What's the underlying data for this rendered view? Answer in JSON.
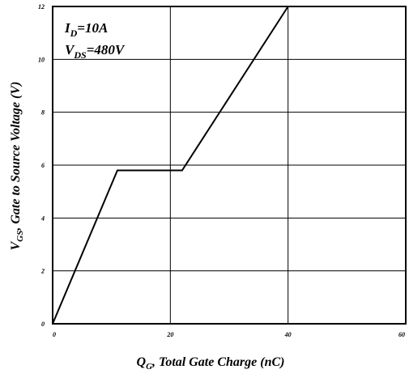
{
  "chart_data": {
    "type": "line",
    "xlim": [
      0,
      60
    ],
    "ylim": [
      0,
      12
    ],
    "x_ticks": [
      "0",
      "20",
      "40",
      "60"
    ],
    "y_ticks": [
      "0",
      "2",
      "4",
      "6",
      "8",
      "10",
      "12"
    ],
    "grid": true,
    "series": [
      {
        "x": [
          0,
          11,
          22,
          40
        ],
        "y": [
          0,
          5.8,
          5.8,
          12
        ]
      }
    ],
    "xlabel": {
      "symbol": "Q",
      "sub": "G",
      "rest": ", Total Gate Charge (nC)"
    },
    "ylabel": {
      "symbol": "V",
      "sub": "GS",
      "rest": ", Gate to Source Voltage (V)"
    },
    "annotations": [
      {
        "symbol": "I",
        "sub": "D",
        "rest": "=10A"
      },
      {
        "symbol": "V",
        "sub": "DS",
        "rest": "=480V"
      }
    ]
  }
}
